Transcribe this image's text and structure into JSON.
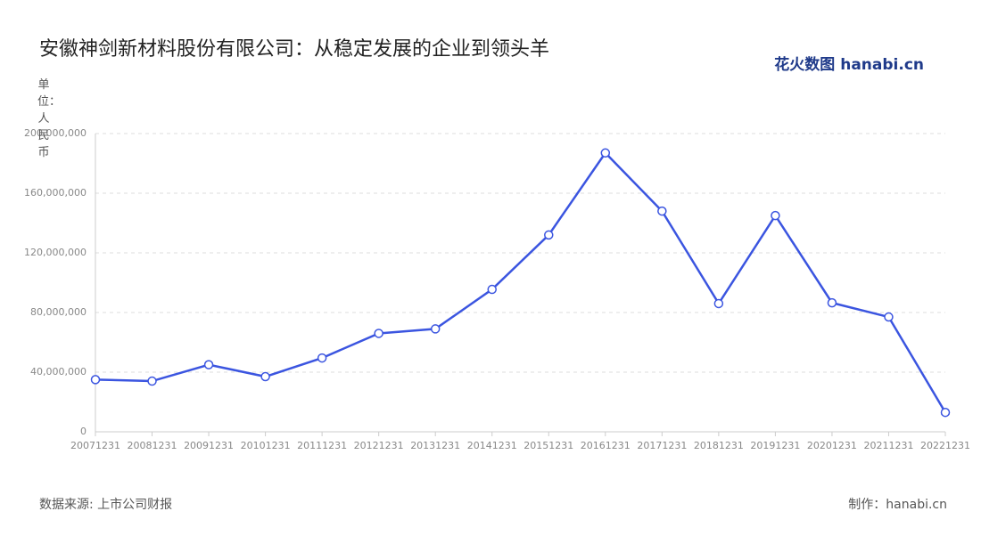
{
  "chart_data": {
    "type": "line",
    "title": "安徽神剑新材料股份有限公司：从稳定发展的企业到领头羊",
    "y_label": "单位：人民币",
    "logo": "花火数图 hanabi.cn",
    "source": "数据来源: 上市公司财报",
    "credit": "制作：hanabi.cn",
    "categories": [
      "20071231",
      "20081231",
      "20091231",
      "20101231",
      "20111231",
      "20121231",
      "20131231",
      "20141231",
      "20151231",
      "20161231",
      "20171231",
      "20181231",
      "20191231",
      "20201231",
      "20211231",
      "20221231"
    ],
    "series": [
      {
        "color": "#3b55e0",
        "values": [
          35000000,
          34000000,
          45000000,
          37000000,
          49500000,
          66000000,
          69000000,
          95500000,
          132000000,
          187000000,
          148000000,
          86000000,
          145000000,
          86500000,
          77000000,
          13000000
        ]
      }
    ],
    "ylim": [
      0,
      200000000
    ],
    "yticks": [
      {
        "value": 0,
        "label": "0"
      },
      {
        "value": 40000000,
        "label": "40,000,000"
      },
      {
        "value": 80000000,
        "label": "80,000,000"
      },
      {
        "value": 120000000,
        "label": "120,000,000"
      },
      {
        "value": 160000000,
        "label": "160,000,000"
      },
      {
        "value": 200000000,
        "label": "200,000,000"
      }
    ],
    "grid": true
  }
}
